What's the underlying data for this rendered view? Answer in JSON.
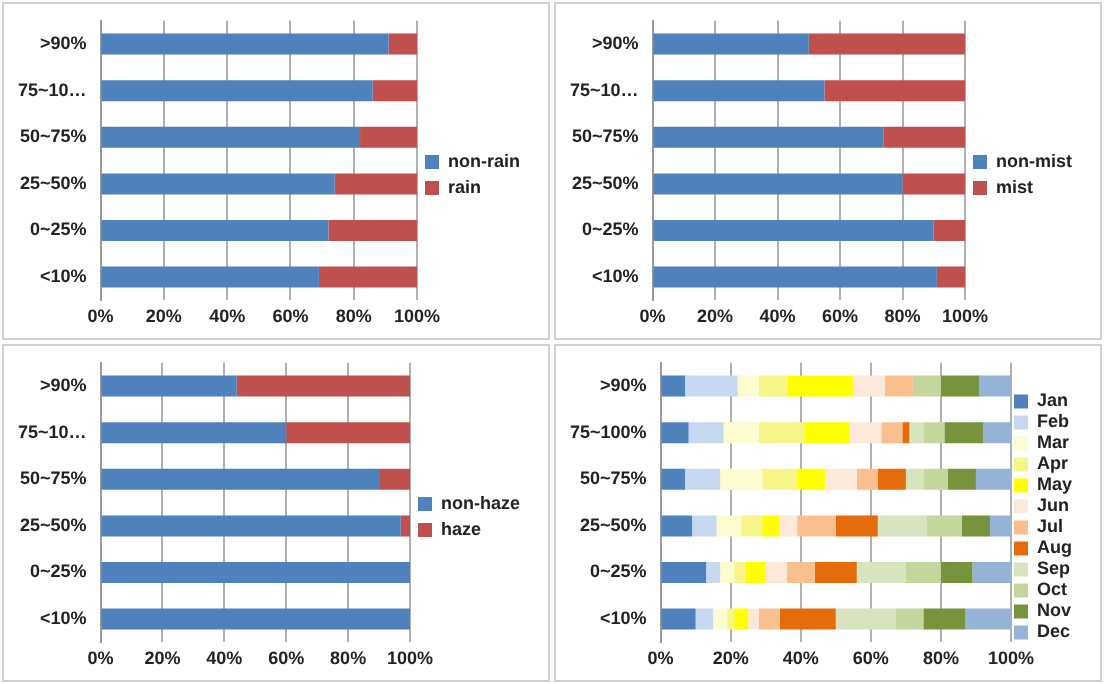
{
  "chart_data": [
    {
      "type": "bar",
      "orientation": "horizontal",
      "stacked": true,
      "categories": [
        ">90%",
        "75~10…",
        "50~75%",
        "25~50%",
        "0~25%",
        "<10%"
      ],
      "series": [
        {
          "name": "non-rain",
          "color": "#4f81bd",
          "values": [
            91,
            86,
            82,
            74,
            72,
            69
          ]
        },
        {
          "name": "rain",
          "color": "#c0504d",
          "values": [
            9,
            14,
            18,
            26,
            28,
            31
          ]
        }
      ],
      "xlim": [
        0,
        100
      ],
      "xticks": [
        {
          "value": 0,
          "label": "0%"
        },
        {
          "value": 20,
          "label": "20%"
        },
        {
          "value": 40,
          "label": "40%"
        },
        {
          "value": 60,
          "label": "60%"
        },
        {
          "value": 80,
          "label": "80%"
        },
        {
          "value": 100,
          "label": "100%"
        }
      ],
      "grid": "x",
      "legend": "right"
    },
    {
      "type": "bar",
      "orientation": "horizontal",
      "stacked": true,
      "categories": [
        ">90%",
        "75~10…",
        "50~75%",
        "25~50%",
        "0~25%",
        "<10%"
      ],
      "series": [
        {
          "name": "non-mist",
          "color": "#4f81bd",
          "values": [
            50,
            55,
            74,
            80,
            90,
            91
          ]
        },
        {
          "name": "mist",
          "color": "#c0504d",
          "values": [
            50,
            45,
            26,
            20,
            10,
            9
          ]
        }
      ],
      "xlim": [
        0,
        100
      ],
      "xticks": [
        {
          "value": 0,
          "label": "0%"
        },
        {
          "value": 20,
          "label": "20%"
        },
        {
          "value": 40,
          "label": "40%"
        },
        {
          "value": 60,
          "label": "60%"
        },
        {
          "value": 80,
          "label": "80%"
        },
        {
          "value": 100,
          "label": "100%"
        }
      ],
      "grid": "x",
      "legend": "right"
    },
    {
      "type": "bar",
      "orientation": "horizontal",
      "stacked": true,
      "categories": [
        ">90%",
        "75~10…",
        "50~75%",
        "25~50%",
        "0~25%",
        "<10%"
      ],
      "series": [
        {
          "name": "non-haze",
          "color": "#4f81bd",
          "values": [
            44,
            60,
            90,
            97,
            100,
            100
          ]
        },
        {
          "name": "haze",
          "color": "#c0504d",
          "values": [
            56,
            40,
            10,
            3,
            0,
            0
          ]
        }
      ],
      "xlim": [
        0,
        100
      ],
      "xticks": [
        {
          "value": 0,
          "label": "0%"
        },
        {
          "value": 20,
          "label": "20%"
        },
        {
          "value": 40,
          "label": "40%"
        },
        {
          "value": 60,
          "label": "60%"
        },
        {
          "value": 80,
          "label": "80%"
        },
        {
          "value": 100,
          "label": "100%"
        }
      ],
      "grid": "x",
      "legend": "right"
    },
    {
      "type": "bar",
      "orientation": "horizontal",
      "stacked": true,
      "categories": [
        ">90%",
        "75~100%",
        "50~75%",
        "25~50%",
        "0~25%",
        "<10%"
      ],
      "series": [
        {
          "name": "Jan",
          "color": "#4f81bd",
          "values": [
            7,
            8,
            7,
            9,
            13,
            10
          ]
        },
        {
          "name": "Feb",
          "color": "#c6d9f1",
          "values": [
            15,
            10,
            10,
            7,
            4,
            5
          ]
        },
        {
          "name": "Mar",
          "color": "#fdfcd0",
          "values": [
            6,
            10,
            12,
            7,
            4,
            4
          ]
        },
        {
          "name": "Apr",
          "color": "#f5f58a",
          "values": [
            8,
            13,
            10,
            6,
            3,
            2
          ]
        },
        {
          "name": "May",
          "color": "#ffff00",
          "values": [
            19,
            13,
            8,
            5,
            6,
            4
          ]
        },
        {
          "name": "Jun",
          "color": "#fde9d9",
          "values": [
            9,
            9,
            9,
            5,
            6,
            3
          ]
        },
        {
          "name": "Jul",
          "color": "#fabf8f",
          "values": [
            8,
            6,
            6,
            11,
            8,
            6
          ]
        },
        {
          "name": "Aug",
          "color": "#e46c0a",
          "values": [
            null,
            2,
            8,
            12,
            12,
            16
          ]
        },
        {
          "name": "Sep",
          "color": "#d7e4bd",
          "values": [
            null,
            4,
            5,
            14,
            14,
            17
          ]
        },
        {
          "name": "Oct",
          "color": "#c3d69b",
          "values": [
            8,
            6,
            7,
            10,
            10,
            8
          ]
        },
        {
          "name": "Nov",
          "color": "#77933c",
          "values": [
            11,
            11,
            8,
            8,
            9,
            12
          ]
        },
        {
          "name": "Dec",
          "color": "#95b3d7",
          "values": [
            9,
            8,
            10,
            6,
            11,
            13
          ]
        }
      ],
      "xlim": [
        0,
        100
      ],
      "xticks": [
        {
          "value": 0,
          "label": "0%"
        },
        {
          "value": 20,
          "label": "20%"
        },
        {
          "value": 40,
          "label": "40%"
        },
        {
          "value": 60,
          "label": "60%"
        },
        {
          "value": 80,
          "label": "80%"
        },
        {
          "value": 100,
          "label": "100%"
        }
      ],
      "grid": "x",
      "legend": "right"
    }
  ]
}
